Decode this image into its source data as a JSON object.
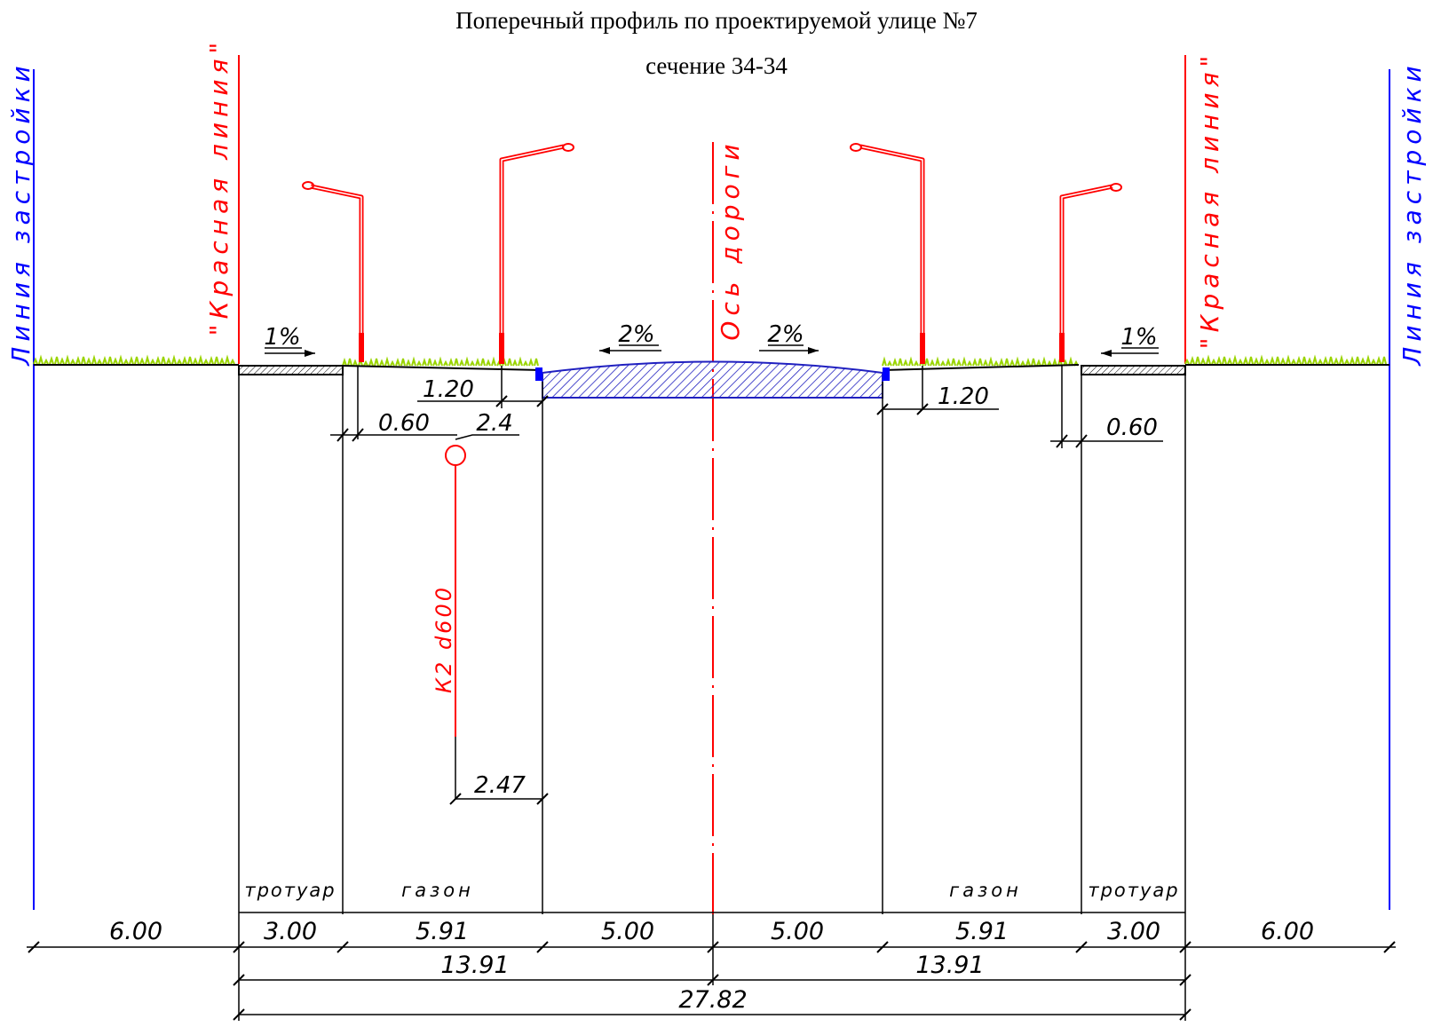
{
  "title": {
    "line1": "Поперечный профиль по проектируемой улице №7",
    "line2": "сечение 34-34"
  },
  "vertical_labels": {
    "building_line_left": "Линия застройки",
    "red_line_left": "\"Красная линия\"",
    "axis": "Ось дороги",
    "red_line_right": "\"Красная линия\"",
    "building_line_right": "Линия застройки"
  },
  "slopes": {
    "sidewalk_left": "1%",
    "road_left": "2%",
    "road_right": "2%",
    "sidewalk_right": "1%"
  },
  "small_dims": {
    "lamp_offset_left": "1.20",
    "curb_offset_left": "0.60",
    "pipe_offset": "2.4",
    "lamp_offset_right": "1.20",
    "curb_offset_right": "0.60",
    "pipe_distance": "2.47"
  },
  "pipe_label": "К2 d600",
  "zone_labels": {
    "sidewalk_left": "тротуар",
    "lawn_left": "газон",
    "lawn_right": "газон",
    "sidewalk_right": "тротуар"
  },
  "dims_row1": [
    "6.00",
    "3.00",
    "5.91",
    "5.00",
    "5.00",
    "5.91",
    "3.00",
    "6.00"
  ],
  "dims_row2": [
    "13.91",
    "13.91"
  ],
  "dims_row3": "27.82",
  "colors": {
    "red_line": "#ff0000",
    "building_line": "#0000ff",
    "road_hatch": "#2020c0",
    "grass": "#9ad400",
    "lines": "#000000"
  }
}
